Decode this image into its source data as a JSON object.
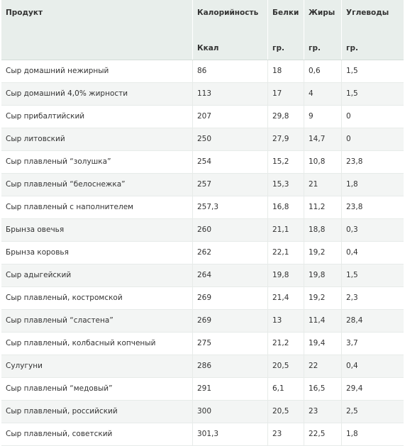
{
  "headers": [
    {
      "top": "Продукт",
      "bottom": ""
    },
    {
      "top": "Калорийность",
      "bottom": "Ккал"
    },
    {
      "top": "Белки",
      "bottom": "гр."
    },
    {
      "top": "Жиры",
      "bottom": "гр."
    },
    {
      "top": "Углеводы",
      "bottom": "гр."
    }
  ],
  "rows": [
    [
      "Сыр домашний нежирный",
      "86",
      "18",
      "0,6",
      "1,5"
    ],
    [
      "Сыр домашний 4,0% жирности",
      "113",
      "17",
      "4",
      "1,5"
    ],
    [
      "Сыр прибалтийский",
      "207",
      "29,8",
      "9",
      "0"
    ],
    [
      "Сыр литовский",
      "250",
      "27,9",
      "14,7",
      "0"
    ],
    [
      "Сыр плавленый “золушка”",
      "254",
      "15,2",
      "10,8",
      "23,8"
    ],
    [
      "Сыр плавленый “белоснежка”",
      "257",
      "15,3",
      "21",
      "1,8"
    ],
    [
      "Сыр плавленый с наполнителем",
      "257,3",
      "16,8",
      "11,2",
      "23,8"
    ],
    [
      "Брынза овечья",
      "260",
      "21,1",
      "18,8",
      "0,3"
    ],
    [
      "Брынза коровья",
      "262",
      "22,1",
      "19,2",
      "0,4"
    ],
    [
      "Сыр адыгейский",
      "264",
      "19,8",
      "19,8",
      "1,5"
    ],
    [
      "Сыр плавленый, костромской",
      "269",
      "21,4",
      "19,2",
      "2,3"
    ],
    [
      "Сыр плавленый “сластена”",
      "269",
      "13",
      "11,4",
      "28,4"
    ],
    [
      "Сыр плавленый, колбасный копченый",
      "275",
      "21,2",
      "19,4",
      "3,7"
    ],
    [
      "Сулугуни",
      "286",
      "20,5",
      "22",
      "0,4"
    ],
    [
      "Сыр плавленый “медовый”",
      "291",
      "6,1",
      "16,5",
      "29,4"
    ],
    [
      "Сыр плавленый, российский",
      "300",
      "20,5",
      "23",
      "2,5"
    ],
    [
      "Сыр плавленый, советский",
      "301,3",
      "23",
      "22,5",
      "1,8"
    ]
  ]
}
